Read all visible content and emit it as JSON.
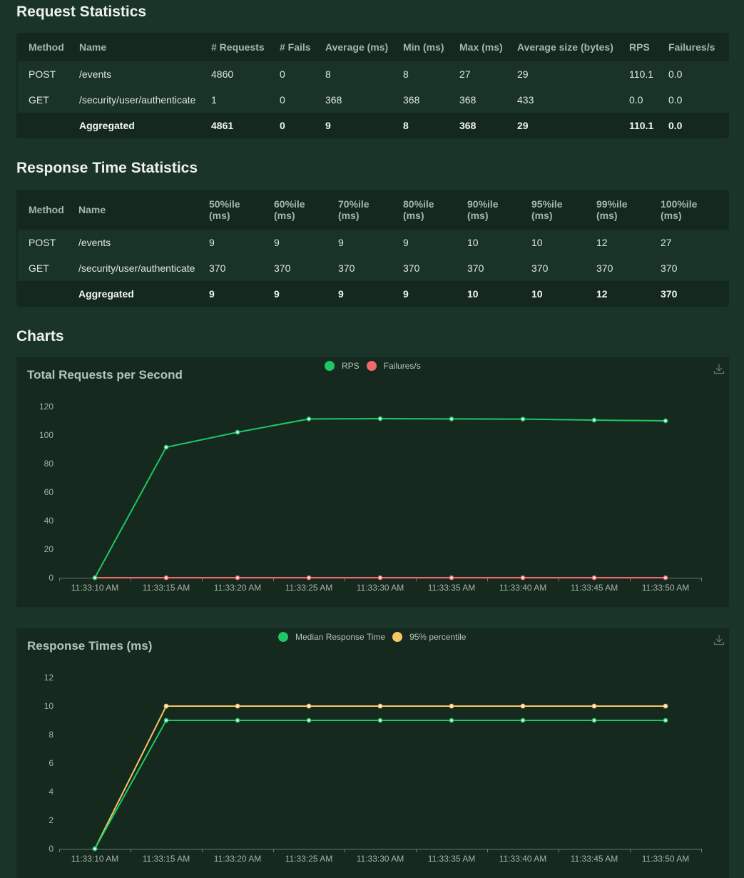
{
  "request_stats": {
    "title": "Request Statistics",
    "headers": [
      "Method",
      "Name",
      "# Requests",
      "# Fails",
      "Average (ms)",
      "Min (ms)",
      "Max (ms)",
      "Average size (bytes)",
      "RPS",
      "Failures/s"
    ],
    "rows": [
      [
        "POST",
        "/events",
        "4860",
        "0",
        "8",
        "8",
        "27",
        "29",
        "110.1",
        "0.0"
      ],
      [
        "GET",
        "/security/user/authenticate",
        "1",
        "0",
        "368",
        "368",
        "368",
        "433",
        "0.0",
        "0.0"
      ]
    ],
    "aggregated": [
      "",
      "Aggregated",
      "4861",
      "0",
      "9",
      "8",
      "368",
      "29",
      "110.1",
      "0.0"
    ]
  },
  "response_stats": {
    "title": "Response Time Statistics",
    "headers": [
      "Method",
      "Name",
      "50%ile (ms)",
      "60%ile (ms)",
      "70%ile (ms)",
      "80%ile (ms)",
      "90%ile (ms)",
      "95%ile (ms)",
      "99%ile (ms)",
      "100%ile (ms)"
    ],
    "headers_l1": [
      "Method",
      "Name",
      "50%ile",
      "60%ile",
      "70%ile",
      "80%ile",
      "90%ile",
      "95%ile",
      "99%ile",
      "100%ile"
    ],
    "headers_l2": [
      "",
      "",
      "(ms)",
      "(ms)",
      "(ms)",
      "(ms)",
      "(ms)",
      "(ms)",
      "(ms)",
      "(ms)"
    ],
    "rows": [
      [
        "POST",
        "/events",
        "9",
        "9",
        "9",
        "9",
        "10",
        "10",
        "12",
        "27"
      ],
      [
        "GET",
        "/security/user/authenticate",
        "370",
        "370",
        "370",
        "370",
        "370",
        "370",
        "370",
        "370"
      ]
    ],
    "aggregated": [
      "",
      "Aggregated",
      "9",
      "9",
      "9",
      "9",
      "10",
      "10",
      "12",
      "370"
    ]
  },
  "charts_section": {
    "title": "Charts"
  },
  "colors": {
    "rps": "#1ec764",
    "failures": "#f0696b",
    "median": "#1ec764",
    "p95": "#f7c663"
  },
  "chart_data": [
    {
      "type": "line",
      "title": "Total Requests per Second",
      "x": [
        "11:33:10 AM",
        "11:33:15 AM",
        "11:33:20 AM",
        "11:33:25 AM",
        "11:33:30 AM",
        "11:33:35 AM",
        "11:33:40 AM",
        "11:33:45 AM",
        "11:33:50 AM"
      ],
      "series": [
        {
          "name": "RPS",
          "color": "#1ec764",
          "values": [
            0,
            91.5,
            102,
            111.3,
            111.5,
            111.3,
            111.2,
            110.5,
            110
          ]
        },
        {
          "name": "Failures/s",
          "color": "#f0696b",
          "values": [
            0,
            0,
            0,
            0,
            0,
            0,
            0,
            0,
            0
          ]
        }
      ],
      "yticks": [
        0,
        20,
        40,
        60,
        80,
        100,
        120
      ],
      "ylim": [
        0,
        120
      ],
      "xlabel": "",
      "ylabel": "",
      "grid": false,
      "legend_position": "top"
    },
    {
      "type": "line",
      "title": "Response Times (ms)",
      "x": [
        "11:33:10 AM",
        "11:33:15 AM",
        "11:33:20 AM",
        "11:33:25 AM",
        "11:33:30 AM",
        "11:33:35 AM",
        "11:33:40 AM",
        "11:33:45 AM",
        "11:33:50 AM"
      ],
      "series": [
        {
          "name": "Median Response Time",
          "color": "#1ec764",
          "values": [
            0,
            9,
            9,
            9,
            9,
            9,
            9,
            9,
            9
          ]
        },
        {
          "name": "95% percentile",
          "color": "#f7c663",
          "values": [
            0,
            10,
            10,
            10,
            10,
            10,
            10,
            10,
            10
          ]
        }
      ],
      "yticks": [
        0,
        2,
        4,
        6,
        8,
        10,
        12
      ],
      "ylim": [
        0,
        12
      ],
      "xlabel": "",
      "ylabel": "",
      "grid": false,
      "legend_position": "top"
    }
  ]
}
